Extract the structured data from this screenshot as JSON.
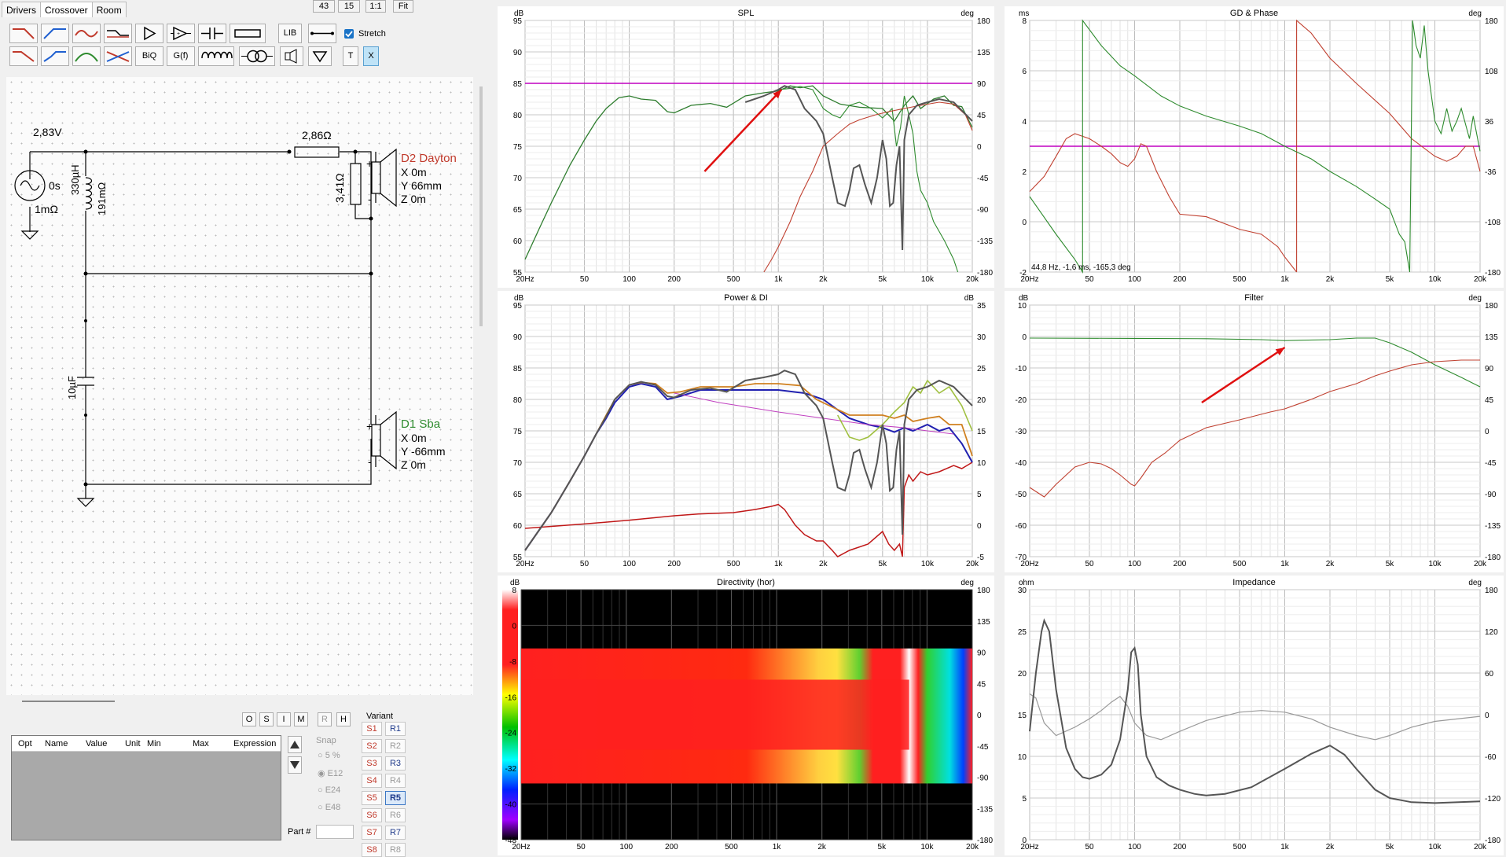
{
  "tabs": [
    {
      "label": "Drivers"
    },
    {
      "label": "Crossover"
    },
    {
      "label": "Room"
    }
  ],
  "top_buttons": [
    "43",
    "15",
    "1:1",
    "Fit"
  ],
  "toolbar": {
    "lib": "LIB",
    "biq": "BiQ",
    "gf": "G(f)",
    "t": "T",
    "x": "X",
    "stretch_label": "Stretch",
    "stretch_checked": true
  },
  "schematic": {
    "source": {
      "voltage": "2,83V",
      "delay": "0s",
      "resistance": "1mΩ"
    },
    "inductor": {
      "value": "330µH",
      "resistance": "191mΩ"
    },
    "series_resistor": "2,86Ω",
    "shunt_resistor": "3,41Ω",
    "capacitor": "10µF",
    "driver_top": {
      "name": "D2 Dayton",
      "x": "X 0m",
      "y": "Y 66mm",
      "z": "Z 0m",
      "color": "#c0392b"
    },
    "driver_bottom": {
      "name": "D1 Sba",
      "x": "X 0m",
      "y": "Y -66mm",
      "z": "Z 0m",
      "color": "#2e8b2e"
    }
  },
  "opt_buttons": [
    "O",
    "S",
    "I",
    "M",
    "R",
    "H"
  ],
  "table": {
    "columns": [
      "Opt",
      "Name",
      "Value",
      "Unit",
      "Min",
      "Max",
      "Expression"
    ]
  },
  "snap": {
    "label": "Snap",
    "options": [
      "5 %",
      "E12",
      "E24",
      "E48"
    ],
    "selected": "E12"
  },
  "part_label": "Part #",
  "variant": {
    "label": "Variant",
    "s": [
      "S1",
      "S2",
      "S3",
      "S4",
      "S5",
      "S6",
      "S7",
      "S8"
    ],
    "r": [
      "R1",
      "R2",
      "R3",
      "R4",
      "R5",
      "R6",
      "R7",
      "R8"
    ],
    "selected": "R5"
  },
  "x_ticks": [
    "20Hz",
    "50",
    "100",
    "200",
    "500",
    "1k",
    "2k",
    "5k",
    "10k",
    "20k"
  ],
  "charts": {
    "spl": {
      "title": "SPL",
      "left_unit": "dB",
      "right_unit": "deg",
      "left_ticks": [
        "95",
        "90",
        "85",
        "80",
        "75",
        "70",
        "65",
        "60",
        "55"
      ],
      "right_ticks": [
        "180",
        "135",
        "90",
        "45",
        "0",
        "-45",
        "-90",
        "-135",
        "-180"
      ]
    },
    "gd": {
      "title": "GD & Phase",
      "left_unit": "ms",
      "right_unit": "deg",
      "left_ticks": [
        "8",
        "6",
        "4",
        "2",
        "0",
        "-2"
      ],
      "right_ticks": [
        "180",
        "108",
        "36",
        "-36",
        "-108",
        "-180"
      ],
      "cursor": "44,8 Hz, -1,6 ms, -165,3 deg"
    },
    "power": {
      "title": "Power & DI",
      "left_unit": "dB",
      "right_unit": "dB",
      "left_ticks": [
        "95",
        "90",
        "85",
        "80",
        "75",
        "70",
        "65",
        "60",
        "55"
      ],
      "right_ticks": [
        "35",
        "30",
        "25",
        "20",
        "15",
        "10",
        "5",
        "0",
        "-5"
      ]
    },
    "filter": {
      "title": "Filter",
      "left_unit": "dB",
      "right_unit": "deg",
      "left_ticks": [
        "10",
        "0",
        "-10",
        "-20",
        "-30",
        "-40",
        "-50",
        "-60",
        "-70"
      ],
      "right_ticks": [
        "180",
        "135",
        "90",
        "45",
        "0",
        "-45",
        "-90",
        "-135",
        "-180"
      ]
    },
    "directivity": {
      "title": "Directivity (hor)",
      "left_unit": "dB",
      "right_unit": "deg",
      "scale_ticks": [
        "8",
        "0",
        "-8",
        "-16",
        "-24",
        "-32",
        "-40",
        "-48"
      ],
      "right_ticks": [
        "180",
        "135",
        "90",
        "45",
        "0",
        "-45",
        "-90",
        "-135",
        "-180"
      ]
    },
    "impedance": {
      "title": "Impedance",
      "left_unit": "ohm",
      "right_unit": "deg",
      "left_ticks": [
        "30",
        "25",
        "20",
        "15",
        "10",
        "5",
        "0"
      ],
      "right_ticks": [
        "180",
        "120",
        "60",
        "0",
        "-60",
        "-120",
        "-180"
      ]
    }
  },
  "colors": {
    "red": "#c0392b",
    "green": "#2e8b2e",
    "magenta": "#c000c0",
    "arrow": "#e01010"
  }
}
